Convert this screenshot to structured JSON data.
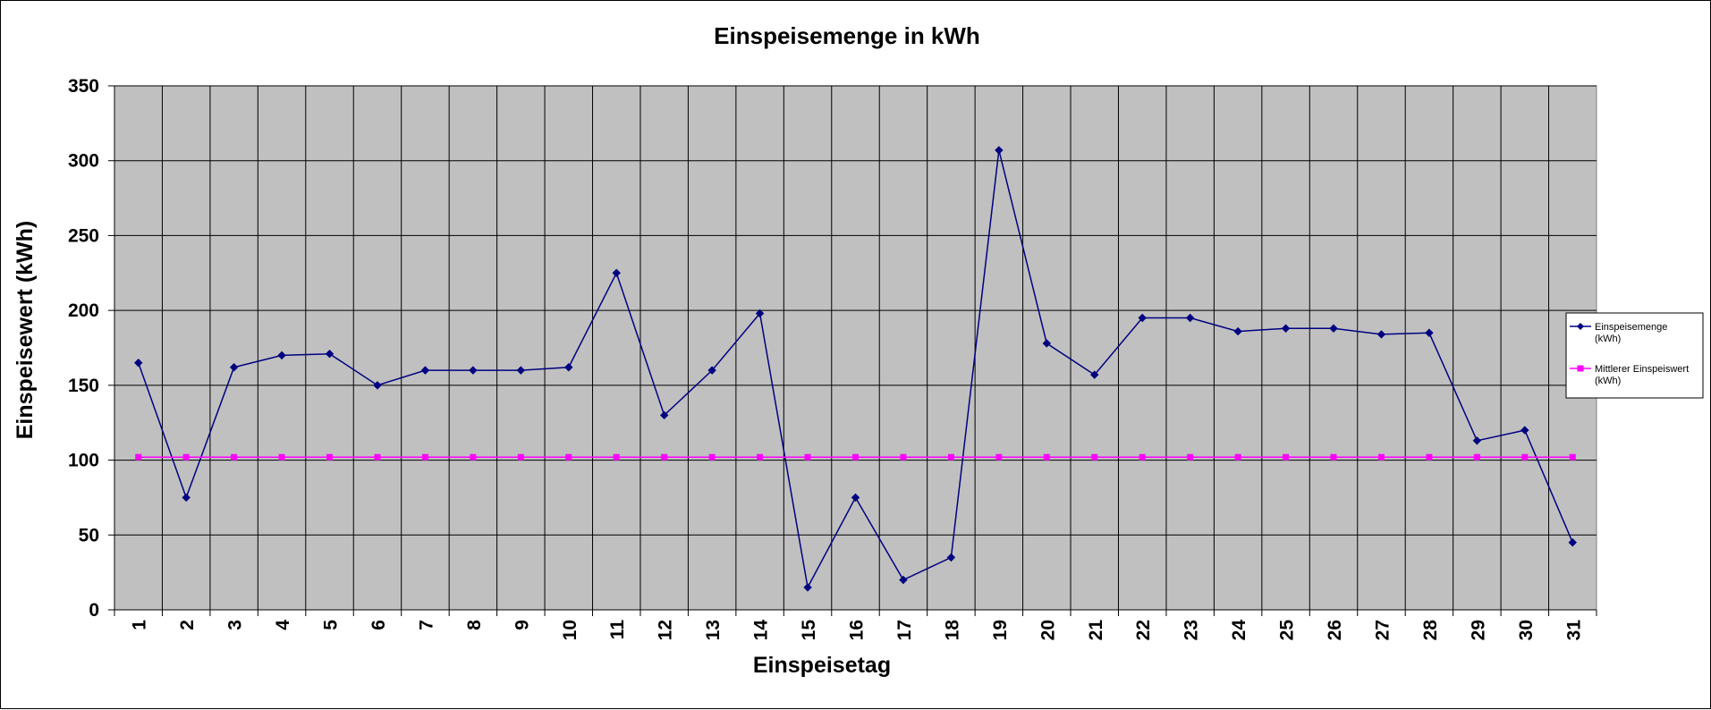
{
  "chart_data": {
    "type": "line",
    "title": "Einspeisemenge in kWh",
    "xlabel": "Einspeisetag",
    "ylabel": "Einspeisewert  (kWh)",
    "categories": [
      "1",
      "2",
      "3",
      "4",
      "5",
      "6",
      "7",
      "8",
      "9",
      "10",
      "11",
      "12",
      "13",
      "14",
      "15",
      "16",
      "17",
      "18",
      "19",
      "20",
      "21",
      "22",
      "23",
      "24",
      "25",
      "26",
      "27",
      "28",
      "29",
      "30",
      "31"
    ],
    "ylim": [
      0,
      350
    ],
    "yticks": [
      "0",
      "50",
      "100",
      "150",
      "200",
      "250",
      "300",
      "350"
    ],
    "grid": true,
    "legend_position": "right",
    "background_color": "#c0c0c0",
    "series": [
      {
        "name_lines": [
          "Einspeisemenge",
          "(kWh)"
        ],
        "color": "#000080",
        "marker": "diamond",
        "values": [
          165,
          75,
          162,
          170,
          171,
          150,
          160,
          160,
          160,
          162,
          225,
          130,
          160,
          198,
          15,
          75,
          20,
          35,
          307,
          178,
          157,
          195,
          195,
          186,
          188,
          188,
          184,
          185,
          113,
          120,
          45
        ]
      },
      {
        "name_lines": [
          "Mittlerer Einspeiswert",
          "(kWh)"
        ],
        "color": "#ff00ff",
        "marker": "square",
        "values": [
          102,
          102,
          102,
          102,
          102,
          102,
          102,
          102,
          102,
          102,
          102,
          102,
          102,
          102,
          102,
          102,
          102,
          102,
          102,
          102,
          102,
          102,
          102,
          102,
          102,
          102,
          102,
          102,
          102,
          102,
          102
        ]
      }
    ]
  }
}
